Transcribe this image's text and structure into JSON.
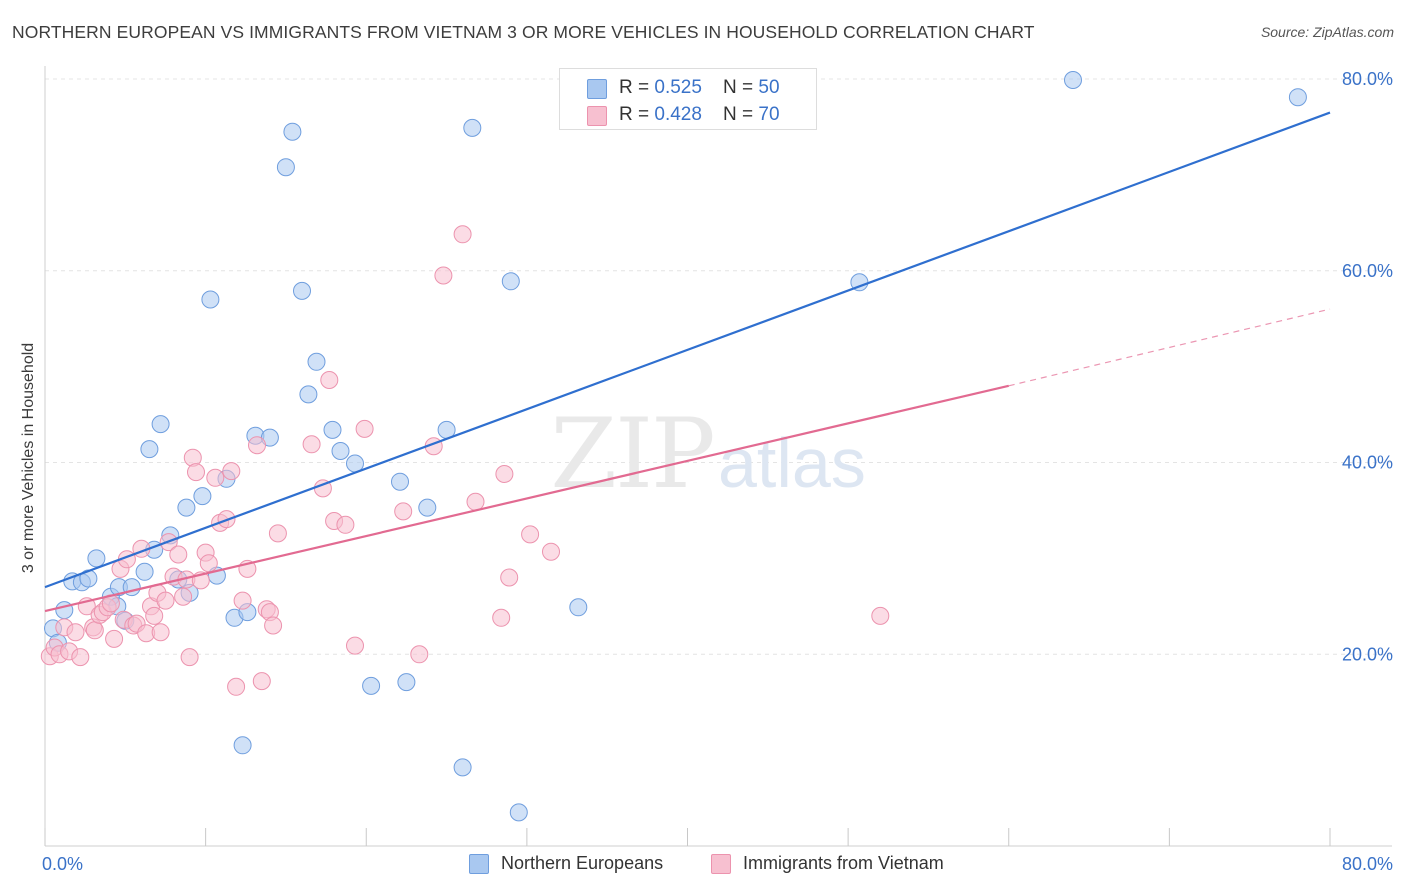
{
  "header": {
    "title": "NORTHERN EUROPEAN VS IMMIGRANTS FROM VIETNAM 3 OR MORE VEHICLES IN HOUSEHOLD CORRELATION CHART",
    "source": "Source: ZipAtlas.com"
  },
  "legend_top": {
    "rows": [
      {
        "r_label": "R = ",
        "r_value": "0.525",
        "n_label": "N = ",
        "n_value": "50"
      },
      {
        "r_label": "R = ",
        "r_value": "0.428",
        "n_label": "N = ",
        "n_value": "70"
      }
    ]
  },
  "legend_bottom": {
    "items": [
      {
        "label": "Northern Europeans"
      },
      {
        "label": "Immigrants from Vietnam"
      }
    ]
  },
  "chart_data": {
    "type": "scatter",
    "title": "NORTHERN EUROPEAN VS IMMIGRANTS FROM VIETNAM 3 OR MORE VEHICLES IN HOUSEHOLD CORRELATION CHART",
    "xlabel": "",
    "ylabel": "3 or more Vehicles in Household",
    "xlim": [
      0,
      80
    ],
    "ylim": [
      0,
      82
    ],
    "x_tick_labels": [
      "0.0%",
      "80.0%"
    ],
    "y_ticks": [
      20,
      40,
      60,
      80
    ],
    "y_tick_labels": [
      "20.0%",
      "40.0%",
      "60.0%",
      "80.0%"
    ],
    "grid": true,
    "legend_position": "top-center",
    "watermark": "ZIPatlas",
    "colors": {
      "series1_fill": "#a9c8f0",
      "series1_stroke": "#6f9ede",
      "series1_line": "#2f6fcf",
      "series2_fill": "#f7c0d0",
      "series2_stroke": "#ec93ae",
      "series2_line": "#e26a91",
      "axis_label": "#3a72c8",
      "grid": "#e4e4e4"
    },
    "series": [
      {
        "name": "Northern Europeans",
        "r": 0.525,
        "n": 50,
        "trend": {
          "x0": 0,
          "y0": 27,
          "x1": 80,
          "y1": 76.5
        },
        "points": [
          [
            0.5,
            22.7
          ],
          [
            0.8,
            21.2
          ],
          [
            1.2,
            24.6
          ],
          [
            1.7,
            27.6
          ],
          [
            2.3,
            27.5
          ],
          [
            2.7,
            27.9
          ],
          [
            3.2,
            30.0
          ],
          [
            4.1,
            26.0
          ],
          [
            4.5,
            25.0
          ],
          [
            4.6,
            27.0
          ],
          [
            5.0,
            23.5
          ],
          [
            5.4,
            27.0
          ],
          [
            6.2,
            28.6
          ],
          [
            6.5,
            41.4
          ],
          [
            6.8,
            30.9
          ],
          [
            7.2,
            44.0
          ],
          [
            7.8,
            32.4
          ],
          [
            8.3,
            27.8
          ],
          [
            8.8,
            35.3
          ],
          [
            9.0,
            26.4
          ],
          [
            9.8,
            36.5
          ],
          [
            10.3,
            57.0
          ],
          [
            10.7,
            28.2
          ],
          [
            11.3,
            38.3
          ],
          [
            11.8,
            23.8
          ],
          [
            12.3,
            10.5
          ],
          [
            12.6,
            24.4
          ],
          [
            13.1,
            42.8
          ],
          [
            14.0,
            42.6
          ],
          [
            15.0,
            70.8
          ],
          [
            15.4,
            74.5
          ],
          [
            16.0,
            57.9
          ],
          [
            16.4,
            47.1
          ],
          [
            16.9,
            50.5
          ],
          [
            17.9,
            43.4
          ],
          [
            18.4,
            41.2
          ],
          [
            19.3,
            39.9
          ],
          [
            20.3,
            16.7
          ],
          [
            22.1,
            38.0
          ],
          [
            22.5,
            17.1
          ],
          [
            23.8,
            35.3
          ],
          [
            25.0,
            43.4
          ],
          [
            26.0,
            8.2
          ],
          [
            26.6,
            74.9
          ],
          [
            29.0,
            58.9
          ],
          [
            29.5,
            3.5
          ],
          [
            33.2,
            24.9
          ],
          [
            50.7,
            58.8
          ],
          [
            64.0,
            79.9
          ],
          [
            78.0,
            78.1
          ]
        ]
      },
      {
        "name": "Immigrants from Vietnam",
        "r": 0.428,
        "n": 70,
        "trend": {
          "x0": 0,
          "y0": 24.5,
          "x1": 60,
          "y1": 48.0,
          "dash_to_x": 80,
          "dash_to_y": 56.0
        },
        "points": [
          [
            0.3,
            19.8
          ],
          [
            0.6,
            20.7
          ],
          [
            0.9,
            20.0
          ],
          [
            1.2,
            22.8
          ],
          [
            1.5,
            20.3
          ],
          [
            1.9,
            22.3
          ],
          [
            2.2,
            19.7
          ],
          [
            2.6,
            25.0
          ],
          [
            3.0,
            22.8
          ],
          [
            3.1,
            22.5
          ],
          [
            3.4,
            24.1
          ],
          [
            3.6,
            24.4
          ],
          [
            3.9,
            24.9
          ],
          [
            4.1,
            25.3
          ],
          [
            4.3,
            21.6
          ],
          [
            4.7,
            28.9
          ],
          [
            4.9,
            23.6
          ],
          [
            5.1,
            29.9
          ],
          [
            5.5,
            23.0
          ],
          [
            5.7,
            23.2
          ],
          [
            6.0,
            31.0
          ],
          [
            6.3,
            22.2
          ],
          [
            6.6,
            25.0
          ],
          [
            6.8,
            24.0
          ],
          [
            7.0,
            26.4
          ],
          [
            7.2,
            22.3
          ],
          [
            7.5,
            25.6
          ],
          [
            7.7,
            31.7
          ],
          [
            8.0,
            28.1
          ],
          [
            8.3,
            30.4
          ],
          [
            8.6,
            26.0
          ],
          [
            8.8,
            27.8
          ],
          [
            9.0,
            19.7
          ],
          [
            9.2,
            40.5
          ],
          [
            9.4,
            39.0
          ],
          [
            9.7,
            27.7
          ],
          [
            10.0,
            30.6
          ],
          [
            10.2,
            29.5
          ],
          [
            10.6,
            38.4
          ],
          [
            10.9,
            33.7
          ],
          [
            11.3,
            34.1
          ],
          [
            11.6,
            39.1
          ],
          [
            11.9,
            16.6
          ],
          [
            12.3,
            25.6
          ],
          [
            12.6,
            28.9
          ],
          [
            13.2,
            41.8
          ],
          [
            13.5,
            17.2
          ],
          [
            13.8,
            24.7
          ],
          [
            14.0,
            24.4
          ],
          [
            14.2,
            23.0
          ],
          [
            14.5,
            32.6
          ],
          [
            16.6,
            41.9
          ],
          [
            17.3,
            37.3
          ],
          [
            17.7,
            48.6
          ],
          [
            18.0,
            33.9
          ],
          [
            18.7,
            33.5
          ],
          [
            19.3,
            20.9
          ],
          [
            19.9,
            43.5
          ],
          [
            22.3,
            34.9
          ],
          [
            23.3,
            20.0
          ],
          [
            24.2,
            41.7
          ],
          [
            24.8,
            59.5
          ],
          [
            26.0,
            63.8
          ],
          [
            26.8,
            35.9
          ],
          [
            28.4,
            23.8
          ],
          [
            28.6,
            38.8
          ],
          [
            28.9,
            28.0
          ],
          [
            30.2,
            32.5
          ],
          [
            31.5,
            30.7
          ],
          [
            52.0,
            24.0
          ]
        ]
      }
    ]
  }
}
